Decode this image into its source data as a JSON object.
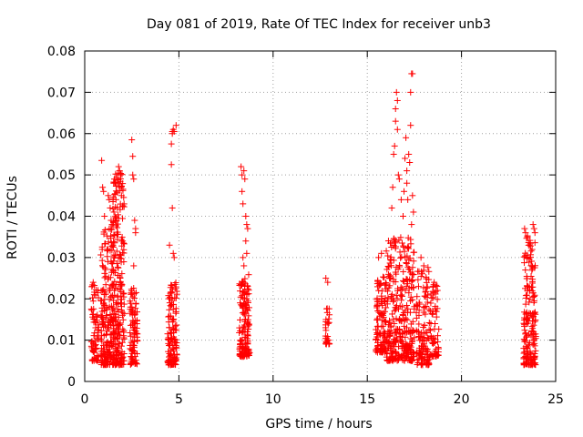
{
  "chart_data": {
    "type": "scatter",
    "title": "Day 081 of 2019, Rate Of TEC Index for receiver unb3",
    "xlabel": "GPS time / hours",
    "ylabel": "ROTI / TECUs",
    "xlim": [
      0,
      25
    ],
    "ylim": [
      0,
      0.08
    ],
    "x_ticks": [
      "0",
      "5",
      "10",
      "15",
      "20",
      "25"
    ],
    "y_ticks": [
      "0",
      "0.01",
      "0.02",
      "0.03",
      "0.04",
      "0.05",
      "0.06",
      "0.07",
      "0.08"
    ],
    "grid": true,
    "marker": "+",
    "color": "#ff0000",
    "clusters": [
      {
        "x_start": 0.35,
        "x_end": 0.75,
        "y_min": 0.005,
        "y_max": 0.024,
        "count": 70
      },
      {
        "x_start": 0.85,
        "x_end": 1.55,
        "y_min": 0.004,
        "y_max": 0.037,
        "count": 200
      },
      {
        "x_start": 1.5,
        "x_end": 2.1,
        "y_min": 0.004,
        "y_max": 0.052,
        "count": 240
      },
      {
        "x_start": 2.4,
        "x_end": 2.8,
        "y_min": 0.004,
        "y_max": 0.023,
        "count": 90
      },
      {
        "x_start": 4.4,
        "x_end": 4.9,
        "y_min": 0.004,
        "y_max": 0.024,
        "count": 120
      },
      {
        "x_start": 8.2,
        "x_end": 8.75,
        "y_min": 0.006,
        "y_max": 0.026,
        "count": 150
      },
      {
        "x_start": 12.75,
        "x_end": 13.0,
        "y_min": 0.009,
        "y_max": 0.018,
        "count": 30
      },
      {
        "x_start": 15.45,
        "x_end": 16.0,
        "y_min": 0.007,
        "y_max": 0.026,
        "count": 110
      },
      {
        "x_start": 16.0,
        "x_end": 17.5,
        "y_min": 0.005,
        "y_max": 0.035,
        "count": 320
      },
      {
        "x_start": 17.6,
        "x_end": 18.3,
        "y_min": 0.004,
        "y_max": 0.028,
        "count": 120
      },
      {
        "x_start": 18.3,
        "x_end": 18.8,
        "y_min": 0.006,
        "y_max": 0.024,
        "count": 60
      },
      {
        "x_start": 23.3,
        "x_end": 23.95,
        "y_min": 0.004,
        "y_max": 0.036,
        "count": 180
      }
    ],
    "points": [
      [
        0.45,
        0.024
      ],
      [
        0.5,
        0.021
      ],
      [
        0.9,
        0.0535
      ],
      [
        0.95,
        0.047
      ],
      [
        1.0,
        0.046
      ],
      [
        1.05,
        0.04
      ],
      [
        1.25,
        0.045
      ],
      [
        1.3,
        0.044
      ],
      [
        1.35,
        0.042
      ],
      [
        1.4,
        0.039
      ],
      [
        1.45,
        0.038
      ],
      [
        1.55,
        0.041
      ],
      [
        1.6,
        0.039
      ],
      [
        1.75,
        0.048
      ],
      [
        1.8,
        0.052
      ],
      [
        1.85,
        0.051
      ],
      [
        1.9,
        0.05
      ],
      [
        1.95,
        0.045
      ],
      [
        2.5,
        0.0585
      ],
      [
        2.55,
        0.0545
      ],
      [
        2.55,
        0.05
      ],
      [
        2.6,
        0.049
      ],
      [
        2.65,
        0.039
      ],
      [
        2.7,
        0.037
      ],
      [
        2.7,
        0.036
      ],
      [
        2.6,
        0.028
      ],
      [
        4.5,
        0.033
      ],
      [
        4.6,
        0.0525
      ],
      [
        4.6,
        0.0575
      ],
      [
        4.65,
        0.06
      ],
      [
        4.65,
        0.0605
      ],
      [
        4.7,
        0.061
      ],
      [
        4.75,
        0.0605
      ],
      [
        4.85,
        0.062
      ],
      [
        4.65,
        0.042
      ],
      [
        4.7,
        0.031
      ],
      [
        4.75,
        0.03
      ],
      [
        8.3,
        0.052
      ],
      [
        8.35,
        0.05
      ],
      [
        8.35,
        0.046
      ],
      [
        8.4,
        0.043
      ],
      [
        8.45,
        0.051
      ],
      [
        8.5,
        0.049
      ],
      [
        8.55,
        0.04
      ],
      [
        8.6,
        0.038
      ],
      [
        8.65,
        0.037
      ],
      [
        8.55,
        0.034
      ],
      [
        8.6,
        0.031
      ],
      [
        8.4,
        0.03
      ],
      [
        8.45,
        0.028
      ],
      [
        8.45,
        0.024
      ],
      [
        12.8,
        0.025
      ],
      [
        12.9,
        0.024
      ],
      [
        15.6,
        0.03
      ],
      [
        15.75,
        0.031
      ],
      [
        16.3,
        0.042
      ],
      [
        16.35,
        0.047
      ],
      [
        16.4,
        0.055
      ],
      [
        16.45,
        0.057
      ],
      [
        16.5,
        0.066
      ],
      [
        16.5,
        0.063
      ],
      [
        16.55,
        0.07
      ],
      [
        16.6,
        0.068
      ],
      [
        16.6,
        0.061
      ],
      [
        16.65,
        0.05
      ],
      [
        16.7,
        0.049
      ],
      [
        16.8,
        0.044
      ],
      [
        16.9,
        0.04
      ],
      [
        16.95,
        0.046
      ],
      [
        17.0,
        0.054
      ],
      [
        17.05,
        0.059
      ],
      [
        17.1,
        0.051
      ],
      [
        17.1,
        0.048
      ],
      [
        17.15,
        0.044
      ],
      [
        17.2,
        0.055
      ],
      [
        17.25,
        0.053
      ],
      [
        17.3,
        0.062
      ],
      [
        17.35,
        0.0745
      ],
      [
        17.4,
        0.0745
      ],
      [
        17.3,
        0.07
      ],
      [
        17.4,
        0.045
      ],
      [
        17.45,
        0.041
      ],
      [
        17.35,
        0.038
      ],
      [
        17.85,
        0.03
      ],
      [
        18.0,
        0.028
      ],
      [
        18.55,
        0.024
      ],
      [
        18.5,
        0.023
      ],
      [
        23.35,
        0.037
      ],
      [
        23.4,
        0.036
      ],
      [
        23.5,
        0.035
      ],
      [
        23.8,
        0.038
      ],
      [
        23.85,
        0.037
      ],
      [
        23.9,
        0.036
      ]
    ],
    "seed": 8119
  }
}
